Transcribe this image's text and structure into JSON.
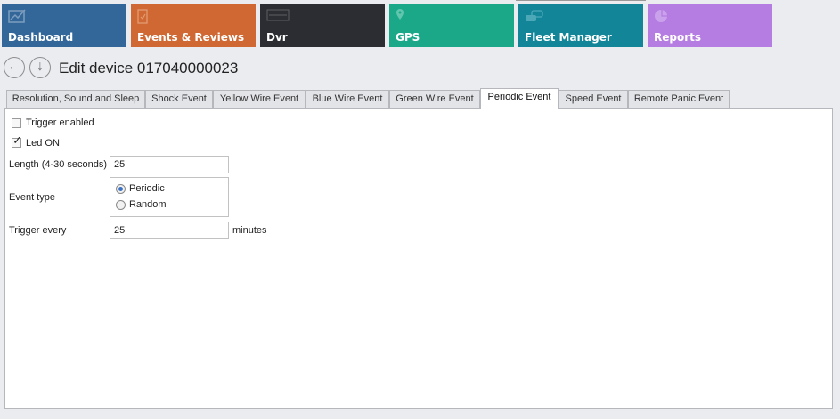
{
  "nav": {
    "tiles": [
      {
        "label": "Dashboard",
        "icon": "chart-line-icon",
        "color": "#336699"
      },
      {
        "label": "Events & Reviews",
        "icon": "clipboard-check-icon",
        "color": "#d06834"
      },
      {
        "label": "Dvr",
        "icon": "dvr-icon",
        "color": "#2b2d33"
      },
      {
        "label": "GPS",
        "icon": "map-pin-icon",
        "color": "#1aa888"
      },
      {
        "label": "Fleet Manager",
        "icon": "cars-icon",
        "color": "#128598"
      },
      {
        "label": "Reports",
        "icon": "pie-chart-icon",
        "color": "#b57de2"
      }
    ],
    "back_icon": "back-arrow-icon",
    "down_icon": "down-arrow-icon"
  },
  "header": {
    "title": "Edit device 017040000023"
  },
  "tabs": [
    {
      "label": "Resolution, Sound and Sleep"
    },
    {
      "label": "Shock Event"
    },
    {
      "label": "Yellow Wire Event"
    },
    {
      "label": "Blue Wire Event"
    },
    {
      "label": "Green Wire Event"
    },
    {
      "label": "Periodic Event",
      "active": true
    },
    {
      "label": "Speed Event"
    },
    {
      "label": "Remote Panic Event"
    }
  ],
  "form": {
    "trigger_enabled": {
      "label": "Trigger enabled",
      "checked": false
    },
    "led_on": {
      "label": "Led ON",
      "checked": true
    },
    "length": {
      "label": "Length (4-30 seconds)",
      "value": "25"
    },
    "event_type": {
      "label": "Event type",
      "options": [
        {
          "label": "Periodic",
          "selected": true
        },
        {
          "label": "Random",
          "selected": false
        }
      ]
    },
    "trigger_every": {
      "label": "Trigger every",
      "value": "25",
      "unit": "minutes"
    }
  }
}
